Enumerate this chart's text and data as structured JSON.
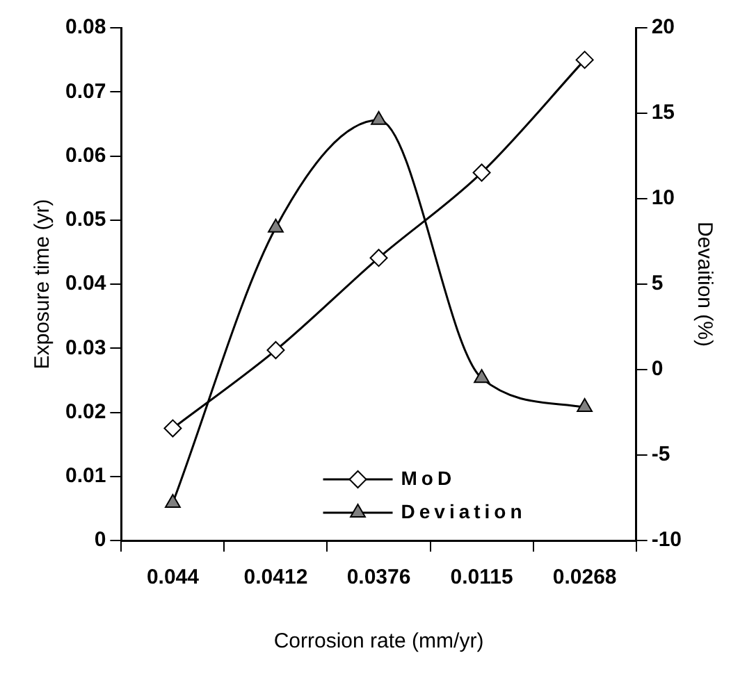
{
  "chart_data": {
    "type": "line",
    "xlabel": "Corrosion rate (mm/yr)",
    "ylabel": "Exposure time (yr)",
    "y2label": "Devaition (%)",
    "categories": [
      "0.044",
      "0.0412",
      "0.0376",
      "0.0115",
      "0.0268"
    ],
    "series": [
      {
        "name": "MoD",
        "color": "#000000",
        "marker": "diamond",
        "values": [
          0.0175,
          0.0297,
          0.0441,
          0.0574,
          0.075
        ]
      },
      {
        "name": "Deviation",
        "color": "#808080",
        "marker": "triangle",
        "axis": "y2",
        "values": [
          -7.8,
          8.3,
          14.6,
          -0.5,
          -2.2
        ]
      }
    ],
    "ylim": [
      0,
      0.08
    ],
    "yticks": [
      0,
      0.01,
      0.02,
      0.03,
      0.04,
      0.05,
      0.06,
      0.07,
      0.08
    ],
    "y2lim": [
      -10,
      20
    ],
    "y2ticks": [
      -10,
      -5,
      0,
      5,
      10,
      15,
      20
    ],
    "grid": false,
    "legend": "bottom",
    "line_style": "solid"
  }
}
